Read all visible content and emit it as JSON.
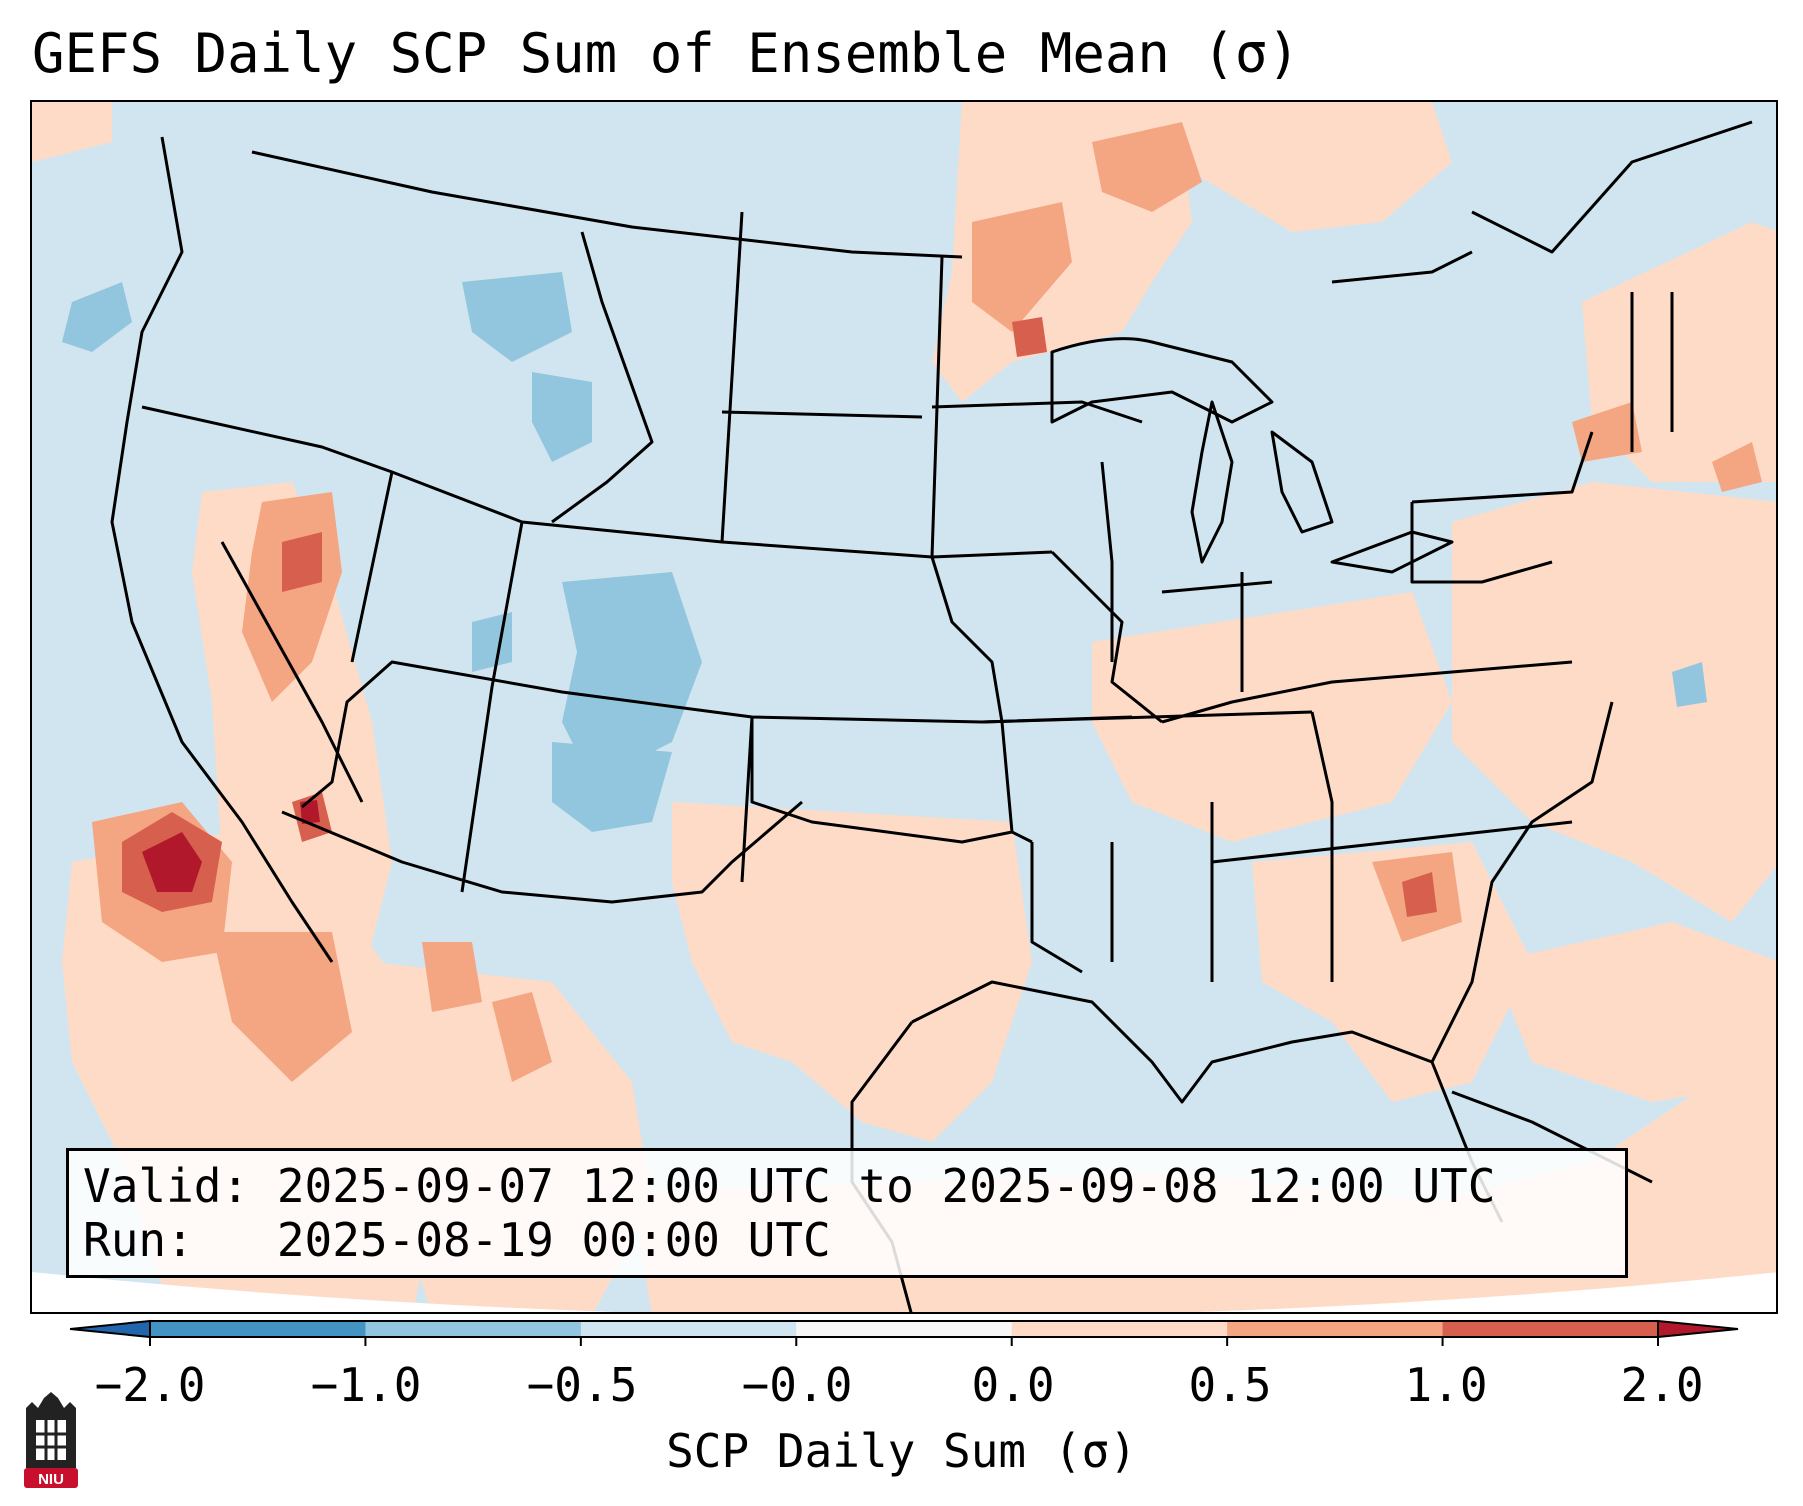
{
  "title": "GEFS Daily SCP Sum of Ensemble Mean (σ)",
  "info": {
    "valid": "Valid: 2025-09-07 12:00 UTC to 2025-09-08 12:00 UTC",
    "run": "Run:   2025-08-19 00:00 UTC"
  },
  "colorbar": {
    "label": "SCP Daily Sum (σ)",
    "ticks": [
      "−2.0",
      "−1.0",
      "−0.5",
      "−0.0",
      "0.0",
      "0.5",
      "1.0",
      "2.0"
    ],
    "colors": [
      "#2166ac",
      "#4393c3",
      "#92c5de",
      "#d1e5f0",
      "#f7f7f7",
      "#fddbc7",
      "#f4a582",
      "#d6604d",
      "#b2182b"
    ]
  },
  "logo": {
    "text": "NIU"
  }
}
